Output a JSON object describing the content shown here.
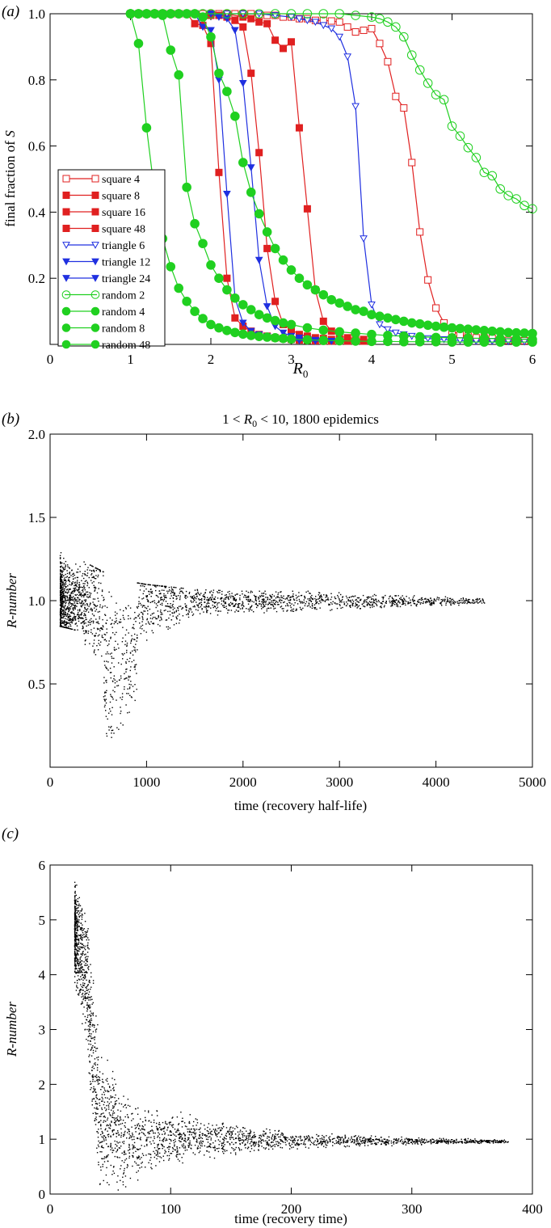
{
  "chart_data": [
    {
      "panel_label": "(a)",
      "type": "line",
      "title": "",
      "xlabel": "R",
      "xlabel_sub": "0",
      "ylabel_prefix": "final fraction of ",
      "ylabel_var": "S",
      "xlim": [
        0,
        6
      ],
      "ylim": [
        0,
        1.0
      ],
      "xticks": [
        0,
        1,
        2,
        3,
        4,
        5,
        6
      ],
      "yticks": [
        0.2,
        0.4,
        0.6,
        0.8,
        1.0
      ],
      "ytick_labels": [
        "0.2",
        "0.4",
        "0.6",
        "0.8",
        "1.0"
      ],
      "legend_position": "bottom-left",
      "series": [
        {
          "name": "square 4",
          "color": "#e02020",
          "marker": "square-open",
          "x": [
            1.0,
            1.1,
            1.2,
            1.3,
            1.4,
            1.5,
            1.6,
            1.7,
            1.8,
            1.9,
            2.0,
            2.1,
            2.2,
            2.3,
            2.4,
            2.5,
            2.6,
            2.7,
            2.8,
            2.9,
            3.0,
            3.1,
            3.2,
            3.3,
            3.4,
            3.5,
            3.6,
            3.7,
            3.8,
            3.9,
            4.0,
            4.1,
            4.2,
            4.3,
            4.4,
            4.5,
            4.6,
            4.7,
            4.8,
            4.9,
            5.0,
            5.1,
            5.2,
            5.3,
            5.4,
            5.5,
            5.6,
            5.7,
            5.8,
            5.9,
            6.0
          ],
          "y": [
            1.0,
            1.0,
            1.0,
            1.0,
            1.0,
            1.0,
            1.0,
            1.0,
            1.0,
            1.0,
            1.0,
            1.0,
            1.0,
            1.0,
            1.0,
            1.0,
            0.995,
            0.995,
            0.995,
            0.99,
            0.99,
            0.985,
            0.985,
            0.98,
            0.98,
            0.978,
            0.975,
            0.96,
            0.945,
            0.95,
            0.955,
            0.91,
            0.855,
            0.75,
            0.715,
            0.55,
            0.34,
            0.195,
            0.11,
            0.065,
            0.04,
            0.03,
            0.025,
            0.02,
            0.02,
            0.018,
            0.015,
            0.012,
            0.012,
            0.011,
            0.01
          ]
        },
        {
          "name": "square 8",
          "color": "#e02020",
          "marker": "square",
          "x": [
            1.0,
            1.1,
            1.2,
            1.3,
            1.4,
            1.5,
            1.6,
            1.7,
            1.8,
            1.9,
            2.0,
            2.1,
            2.2,
            2.3,
            2.4,
            2.5,
            2.6,
            2.7,
            2.8,
            2.9,
            3.0,
            3.1,
            3.2,
            3.3,
            3.4,
            3.5,
            3.6,
            3.7,
            3.8,
            3.9,
            4.0
          ],
          "y": [
            1.0,
            1.0,
            1.0,
            1.0,
            1.0,
            1.0,
            1.0,
            1.0,
            0.97,
            0.965,
            0.91,
            0.52,
            0.2,
            0.08,
            0.055,
            0.04,
            0.03,
            0.025,
            0.02,
            0.018,
            0.015,
            0.013,
            0.012,
            0.011,
            0.01,
            0.01,
            0.01,
            0.01,
            0.01,
            0.01,
            0.01
          ]
        },
        {
          "name": "square 16",
          "color": "#e02020",
          "marker": "square",
          "x": [
            1.0,
            1.2,
            1.4,
            1.6,
            1.8,
            2.0,
            2.1,
            2.2,
            2.3,
            2.4,
            2.5,
            2.6,
            2.7,
            2.8,
            2.9,
            3.0,
            3.1,
            3.2,
            3.3,
            3.4,
            3.5,
            3.6,
            3.7,
            3.8,
            3.9,
            4.0
          ],
          "y": [
            1.0,
            1.0,
            1.0,
            1.0,
            1.0,
            0.995,
            0.995,
            0.99,
            0.98,
            0.96,
            0.82,
            0.58,
            0.29,
            0.13,
            0.06,
            0.045,
            0.03,
            0.025,
            0.02,
            0.018,
            0.015,
            0.013,
            0.012,
            0.01,
            0.01,
            0.01
          ]
        },
        {
          "name": "square 48",
          "color": "#e02020",
          "marker": "square",
          "x": [
            1.0,
            1.2,
            1.4,
            1.6,
            1.8,
            2.0,
            2.2,
            2.4,
            2.5,
            2.6,
            2.7,
            2.8,
            2.9,
            3.0,
            3.1,
            3.2,
            3.3,
            3.4,
            3.5,
            3.6,
            3.7,
            3.8,
            3.9,
            4.0
          ],
          "y": [
            1.0,
            1.0,
            1.0,
            1.0,
            1.0,
            1.0,
            1.0,
            0.99,
            0.985,
            0.975,
            0.97,
            0.92,
            0.895,
            0.915,
            0.655,
            0.41,
            0.165,
            0.07,
            0.04,
            0.025,
            0.02,
            0.018,
            0.015,
            0.012
          ]
        },
        {
          "name": "triangle 6",
          "color": "#2030e0",
          "marker": "triangle-open",
          "x": [
            1.0,
            1.2,
            1.4,
            1.6,
            1.8,
            2.0,
            2.2,
            2.4,
            2.6,
            2.8,
            3.0,
            3.1,
            3.2,
            3.3,
            3.4,
            3.5,
            3.6,
            3.7,
            3.8,
            3.9,
            4.0,
            4.1,
            4.2,
            4.3,
            4.4,
            4.5,
            4.6,
            4.7,
            4.8,
            4.9,
            5.0,
            5.1,
            5.2,
            5.3,
            5.4,
            5.5,
            5.6,
            5.7,
            5.8,
            5.9,
            6.0
          ],
          "y": [
            1.0,
            1.0,
            1.0,
            1.0,
            1.0,
            1.0,
            1.0,
            1.0,
            1.0,
            0.995,
            0.99,
            0.985,
            0.98,
            0.975,
            0.965,
            0.955,
            0.93,
            0.87,
            0.72,
            0.32,
            0.12,
            0.06,
            0.045,
            0.035,
            0.03,
            0.025,
            0.02,
            0.018,
            0.016,
            0.015,
            0.013,
            0.012,
            0.011,
            0.01,
            0.01,
            0.01,
            0.009,
            0.009,
            0.009,
            0.008,
            0.008
          ]
        },
        {
          "name": "triangle 12",
          "color": "#2030e0",
          "marker": "triangle",
          "x": [
            1.0,
            1.2,
            1.4,
            1.6,
            1.8,
            1.9,
            2.0,
            2.1,
            2.2,
            2.3,
            2.4,
            2.5,
            2.6,
            2.7,
            2.8,
            2.9,
            3.0,
            3.1,
            3.2,
            3.3,
            3.4,
            3.5
          ],
          "y": [
            1.0,
            1.0,
            1.0,
            1.0,
            1.0,
            0.96,
            0.95,
            0.8,
            0.455,
            0.14,
            0.065,
            0.04,
            0.03,
            0.024,
            0.02,
            0.016,
            0.014,
            0.012,
            0.011,
            0.01,
            0.01,
            0.01
          ]
        },
        {
          "name": "triangle 24",
          "color": "#2030e0",
          "marker": "triangle",
          "x": [
            1.0,
            1.2,
            1.4,
            1.6,
            1.8,
            2.0,
            2.1,
            2.2,
            2.3,
            2.4,
            2.5,
            2.6,
            2.7,
            2.8,
            2.9,
            3.0,
            3.1,
            3.2,
            3.3,
            3.4,
            3.5
          ],
          "y": [
            1.0,
            1.0,
            1.0,
            1.0,
            1.0,
            1.0,
            0.99,
            0.985,
            0.95,
            0.79,
            0.535,
            0.255,
            0.115,
            0.055,
            0.035,
            0.025,
            0.02,
            0.016,
            0.013,
            0.011,
            0.01
          ]
        },
        {
          "name": "random 2",
          "color": "#20d020",
          "marker": "circle-open",
          "x": [
            1.0,
            1.1,
            1.2,
            1.3,
            1.4,
            1.5,
            1.6,
            1.7,
            1.8,
            1.9,
            2.0,
            2.2,
            2.4,
            2.6,
            2.8,
            3.0,
            3.2,
            3.4,
            3.6,
            3.8,
            4.0,
            4.1,
            4.2,
            4.3,
            4.4,
            4.5,
            4.6,
            4.7,
            4.8,
            4.9,
            5.0,
            5.1,
            5.2,
            5.3,
            5.4,
            5.5,
            5.6,
            5.7,
            5.8,
            5.9,
            6.0
          ],
          "y": [
            1.0,
            1.0,
            1.0,
            1.0,
            1.0,
            1.0,
            1.0,
            1.0,
            1.0,
            1.0,
            1.0,
            1.0,
            1.0,
            1.0,
            1.0,
            1.0,
            1.0,
            1.0,
            1.0,
            0.995,
            0.99,
            0.985,
            0.975,
            0.96,
            0.93,
            0.875,
            0.83,
            0.79,
            0.755,
            0.74,
            0.66,
            0.63,
            0.595,
            0.565,
            0.52,
            0.51,
            0.47,
            0.45,
            0.44,
            0.42,
            0.41
          ]
        },
        {
          "name": "random 4",
          "color": "#20d020",
          "marker": "circle",
          "x": [
            1.0,
            1.1,
            1.2,
            1.3,
            1.4,
            1.5,
            1.6,
            1.7,
            1.8,
            1.9,
            2.0,
            2.1,
            2.2,
            2.3,
            2.4,
            2.5,
            2.6,
            2.7,
            2.8,
            2.9,
            3.0,
            3.1,
            3.2,
            3.3,
            3.4,
            3.5,
            3.6,
            3.7,
            3.8,
            3.9,
            4.0,
            4.1,
            4.2,
            4.3,
            4.4,
            4.5,
            4.6,
            4.7,
            4.8,
            4.9,
            5.0,
            5.1,
            5.2,
            5.3,
            5.4,
            5.5,
            5.6,
            5.7,
            5.8,
            5.9,
            6.0
          ],
          "y": [
            1.0,
            1.0,
            1.0,
            1.0,
            1.0,
            1.0,
            1.0,
            1.0,
            1.0,
            0.99,
            0.93,
            0.82,
            0.765,
            0.69,
            0.55,
            0.46,
            0.395,
            0.34,
            0.29,
            0.255,
            0.225,
            0.2,
            0.18,
            0.165,
            0.15,
            0.135,
            0.125,
            0.115,
            0.105,
            0.1,
            0.09,
            0.085,
            0.08,
            0.075,
            0.07,
            0.065,
            0.062,
            0.058,
            0.055,
            0.052,
            0.05,
            0.048,
            0.046,
            0.044,
            0.042,
            0.04,
            0.038,
            0.036,
            0.035,
            0.034,
            0.033
          ]
        },
        {
          "name": "random 8",
          "color": "#20d020",
          "marker": "circle",
          "x": [
            1.0,
            1.1,
            1.2,
            1.3,
            1.4,
            1.5,
            1.6,
            1.7,
            1.8,
            1.9,
            2.0,
            2.1,
            2.2,
            2.3,
            2.4,
            2.5,
            2.6,
            2.7,
            2.8,
            2.9,
            3.0,
            3.2,
            3.4,
            3.6,
            3.8,
            4.0,
            4.2,
            4.4,
            4.6,
            4.8,
            5.0,
            5.2,
            5.4,
            5.6,
            5.8,
            6.0
          ],
          "y": [
            1.0,
            1.0,
            1.0,
            1.0,
            0.995,
            0.89,
            0.815,
            0.475,
            0.365,
            0.305,
            0.24,
            0.2,
            0.165,
            0.14,
            0.12,
            0.105,
            0.09,
            0.08,
            0.072,
            0.065,
            0.06,
            0.05,
            0.043,
            0.038,
            0.034,
            0.03,
            0.027,
            0.025,
            0.023,
            0.021,
            0.02,
            0.019,
            0.018,
            0.017,
            0.016,
            0.015
          ]
        },
        {
          "name": "random 48",
          "color": "#20d020",
          "marker": "circle",
          "x": [
            1.0,
            1.1,
            1.2,
            1.3,
            1.4,
            1.5,
            1.6,
            1.7,
            1.8,
            1.9,
            2.0,
            2.1,
            2.2,
            2.3,
            2.4,
            2.5,
            2.6,
            2.7,
            2.8,
            2.9,
            3.0,
            3.2,
            3.4,
            3.6,
            3.8,
            4.0,
            4.2,
            4.4,
            4.6,
            4.8,
            5.0,
            5.2,
            5.4,
            5.6,
            5.8,
            6.0
          ],
          "y": [
            1.0,
            0.91,
            0.655,
            0.46,
            0.32,
            0.235,
            0.17,
            0.13,
            0.1,
            0.078,
            0.06,
            0.05,
            0.042,
            0.036,
            0.031,
            0.027,
            0.024,
            0.022,
            0.02,
            0.018,
            0.016,
            0.014,
            0.012,
            0.011,
            0.01,
            0.009,
            0.009,
            0.008,
            0.008,
            0.008,
            0.007,
            0.007,
            0.007,
            0.007,
            0.007,
            0.007
          ]
        }
      ]
    },
    {
      "panel_label": "(b)",
      "type": "scatter",
      "title_prefix": "1 < ",
      "title_var": "R",
      "title_sub": "0",
      "title_suffix": " < 10, 1800 epidemics",
      "xlabel": "time (recovery half-life)",
      "ylabel": "R-number",
      "xlim": [
        0,
        5000
      ],
      "ylim": [
        0,
        2.0
      ],
      "xticks": [
        0,
        1000,
        2000,
        3000,
        4000,
        5000
      ],
      "yticks": [
        0.5,
        1.0,
        1.5,
        2.0
      ],
      "ytick_labels": [
        "0.5",
        "1.0",
        "1.5",
        "2.0"
      ],
      "point_color": "#000000",
      "density_envelope": [
        {
          "t": 100,
          "r_low": 0.85,
          "r_high": 1.48
        },
        {
          "t": 300,
          "r_low": 0.82,
          "r_high": 1.25
        },
        {
          "t": 600,
          "r_low": 0.05,
          "r_high": 1.16
        },
        {
          "t": 800,
          "r_low": 0.25,
          "r_high": 1.12
        },
        {
          "t": 1000,
          "r_low": 0.62,
          "r_high": 1.1
        },
        {
          "t": 1500,
          "r_low": 0.88,
          "r_high": 1.07
        },
        {
          "t": 2000,
          "r_low": 0.9,
          "r_high": 1.06
        },
        {
          "t": 3000,
          "r_low": 0.94,
          "r_high": 1.06
        },
        {
          "t": 4500,
          "r_low": 0.98,
          "r_high": 1.02
        }
      ]
    },
    {
      "panel_label": "(c)",
      "type": "scatter",
      "xlabel": "time (recovery time)",
      "ylabel": "R-number",
      "xlim": [
        0,
        400
      ],
      "ylim": [
        0,
        6
      ],
      "xticks": [
        0,
        100,
        200,
        300,
        400
      ],
      "yticks": [
        0,
        1,
        2,
        3,
        4,
        5,
        6
      ],
      "ytick_labels": [
        "0",
        "1",
        "2",
        "3",
        "4",
        "5",
        "6"
      ],
      "point_color": "#000000",
      "density_envelope": [
        {
          "t": 20,
          "r_low": 3.8,
          "r_high": 5.8
        },
        {
          "t": 30,
          "r_low": 2.6,
          "r_high": 5.3
        },
        {
          "t": 40,
          "r_low": 0.05,
          "r_high": 3.0
        },
        {
          "t": 60,
          "r_low": 0.05,
          "r_high": 1.9
        },
        {
          "t": 80,
          "r_low": 0.3,
          "r_high": 1.7
        },
        {
          "t": 120,
          "r_low": 0.6,
          "r_high": 1.45
        },
        {
          "t": 200,
          "r_low": 0.82,
          "r_high": 1.15
        },
        {
          "t": 300,
          "r_low": 0.9,
          "r_high": 1.05
        },
        {
          "t": 380,
          "r_low": 0.94,
          "r_high": 1.0
        }
      ]
    }
  ]
}
